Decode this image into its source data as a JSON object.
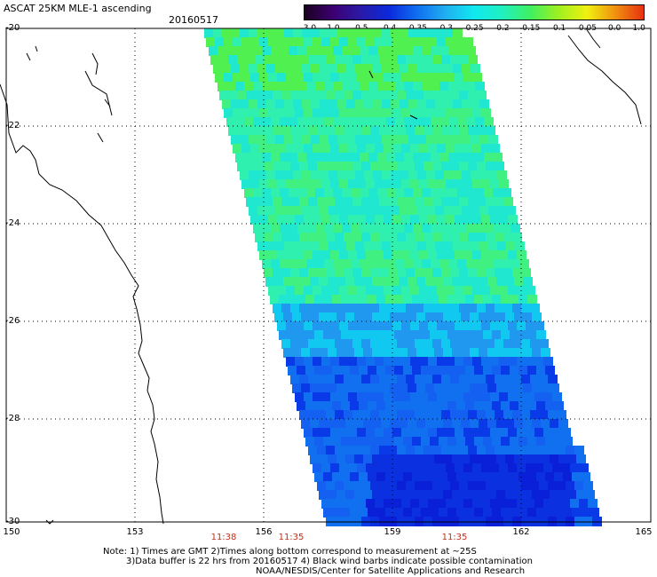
{
  "header": {
    "title": "ASCAT 25KM MLE-1 ascending",
    "date": "20160517"
  },
  "colorbar": {
    "ticks": [
      "-3.0",
      "-1.0",
      "-0.5",
      "-0.4",
      "-0.35",
      "-0.3",
      "-0.25",
      "-0.2",
      "-0.15",
      "-0.1",
      "-0.05",
      "0.0",
      "1.0"
    ],
    "colors": [
      "#1a0020",
      "#3c0070",
      "#2a1aa8",
      "#0a2adc",
      "#1070f0",
      "#20b0f0",
      "#10e8f0",
      "#20f0c0",
      "#40f060",
      "#a0f020",
      "#f0f010",
      "#f09010",
      "#e83010"
    ]
  },
  "map": {
    "lat_labels": [
      "-20",
      "-22",
      "-24",
      "-26",
      "-28",
      "-30"
    ],
    "lon_labels": [
      "150",
      "153",
      "156",
      "159",
      "162",
      "165"
    ],
    "time_labels": [
      "11:38",
      "11:35",
      "11:35"
    ]
  },
  "notes": {
    "line1": "Note: 1) Times are GMT 2)Times along bottom correspond to measurement at ~25S",
    "line2": "3)Data buffer is 22 hrs from 20160517 4) Black wind barbs indicate possible contamination",
    "line3": "NOAA/NESDIS/Center for Satellite Applications and Research"
  }
}
